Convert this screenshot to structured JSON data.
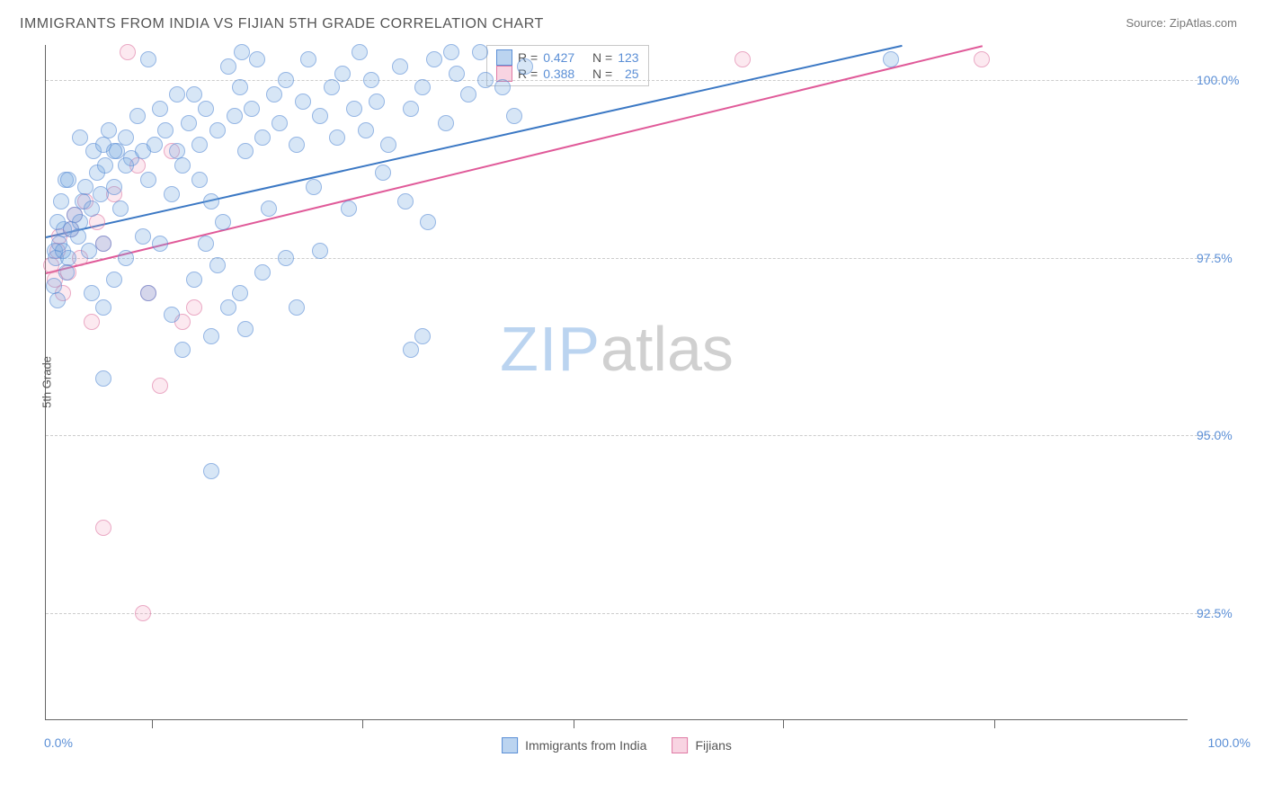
{
  "title": "IMMIGRANTS FROM INDIA VS FIJIAN 5TH GRADE CORRELATION CHART",
  "source_prefix": "Source: ",
  "source_name": "ZipAtlas.com",
  "ylabel": "5th Grade",
  "watermark": {
    "part1": "ZIP",
    "part2": "atlas"
  },
  "chart": {
    "type": "scatter",
    "xlim": [
      0,
      100
    ],
    "ylim": [
      91,
      100.5
    ],
    "xaxis": {
      "min_label": "0.0%",
      "max_label": "100.0%",
      "tick_positions": [
        9.3,
        27.7,
        46.2,
        64.6,
        83.1
      ]
    },
    "yaxis": {
      "ticks": [
        {
          "v": 100.0,
          "label": "100.0%"
        },
        {
          "v": 97.5,
          "label": "97.5%"
        },
        {
          "v": 95.0,
          "label": "95.0%"
        },
        {
          "v": 92.5,
          "label": "92.5%"
        }
      ],
      "label_color": "#5b8fd6",
      "label_fontsize": 14
    },
    "grid_color": "#cccccc",
    "background_color": "#ffffff",
    "marker_size": 18,
    "series": {
      "blue": {
        "name": "Immigrants from India",
        "fill": "rgba(120,170,225,0.45)",
        "stroke": "#5b8fd6",
        "R": "0.427",
        "N": "123",
        "trend": {
          "x1": 0,
          "y1": 97.8,
          "x2": 75,
          "y2": 100.5,
          "color": "#3b78c4",
          "width": 2
        },
        "points": [
          [
            0.8,
            97.6
          ],
          [
            0.9,
            97.5
          ],
          [
            1.2,
            97.7
          ],
          [
            1.5,
            97.6
          ],
          [
            1.6,
            97.9
          ],
          [
            1.0,
            98.0
          ],
          [
            1.8,
            97.3
          ],
          [
            0.7,
            97.1
          ],
          [
            1.0,
            96.9
          ],
          [
            2.0,
            97.5
          ],
          [
            2.2,
            97.9
          ],
          [
            2.5,
            98.1
          ],
          [
            1.3,
            98.3
          ],
          [
            2.8,
            97.8
          ],
          [
            3.0,
            98.0
          ],
          [
            3.2,
            98.3
          ],
          [
            3.5,
            98.5
          ],
          [
            1.7,
            98.6
          ],
          [
            2.0,
            98.6
          ],
          [
            3.8,
            97.6
          ],
          [
            4.0,
            98.2
          ],
          [
            4.2,
            99.0
          ],
          [
            4.5,
            98.7
          ],
          [
            4.8,
            98.4
          ],
          [
            5.0,
            99.1
          ],
          [
            5.2,
            98.8
          ],
          [
            5.5,
            99.3
          ],
          [
            5.0,
            97.7
          ],
          [
            6.0,
            98.5
          ],
          [
            6.2,
            99.0
          ],
          [
            6.5,
            98.2
          ],
          [
            7.0,
            99.2
          ],
          [
            7.5,
            98.9
          ],
          [
            8.0,
            99.5
          ],
          [
            8.5,
            99.0
          ],
          [
            9.0,
            98.6
          ],
          [
            9.5,
            99.1
          ],
          [
            10.0,
            99.6
          ],
          [
            10.5,
            99.3
          ],
          [
            11.0,
            98.4
          ],
          [
            11.5,
            99.0
          ],
          [
            12.0,
            98.8
          ],
          [
            12.5,
            99.4
          ],
          [
            13.0,
            99.8
          ],
          [
            13.5,
            99.1
          ],
          [
            14.0,
            99.6
          ],
          [
            14.5,
            98.3
          ],
          [
            15.0,
            99.3
          ],
          [
            16.0,
            100.2
          ],
          [
            16.5,
            99.5
          ],
          [
            17.0,
            99.9
          ],
          [
            17.2,
            100.4
          ],
          [
            17.5,
            99.0
          ],
          [
            18.0,
            99.6
          ],
          [
            18.5,
            100.3
          ],
          [
            19.0,
            99.2
          ],
          [
            20.0,
            99.8
          ],
          [
            20.5,
            99.4
          ],
          [
            21.0,
            100.0
          ],
          [
            22.0,
            99.1
          ],
          [
            22.5,
            99.7
          ],
          [
            23.0,
            100.3
          ],
          [
            24.0,
            99.5
          ],
          [
            25.0,
            99.9
          ],
          [
            25.5,
            99.2
          ],
          [
            26.0,
            100.1
          ],
          [
            27.0,
            99.6
          ],
          [
            27.5,
            100.4
          ],
          [
            28.0,
            99.3
          ],
          [
            28.5,
            100.0
          ],
          [
            29.0,
            99.7
          ],
          [
            30.0,
            99.1
          ],
          [
            31.0,
            100.2
          ],
          [
            32.0,
            99.6
          ],
          [
            33.0,
            99.9
          ],
          [
            33.5,
            98.0
          ],
          [
            34.0,
            100.3
          ],
          [
            35.0,
            99.4
          ],
          [
            36.0,
            100.1
          ],
          [
            37.0,
            99.8
          ],
          [
            38.0,
            100.4
          ],
          [
            40.0,
            99.9
          ],
          [
            42.0,
            100.2
          ],
          [
            4.0,
            97.0
          ],
          [
            5.0,
            96.8
          ],
          [
            6.0,
            97.2
          ],
          [
            7.0,
            97.5
          ],
          [
            9.0,
            97.0
          ],
          [
            10.0,
            97.7
          ],
          [
            11.0,
            96.7
          ],
          [
            13.0,
            97.2
          ],
          [
            14.0,
            97.7
          ],
          [
            15.0,
            97.4
          ],
          [
            17.0,
            97.0
          ],
          [
            19.0,
            97.3
          ],
          [
            21.0,
            97.5
          ],
          [
            22.0,
            96.8
          ],
          [
            24.0,
            97.6
          ],
          [
            12.0,
            96.2
          ],
          [
            14.5,
            96.4
          ],
          [
            16.0,
            96.8
          ],
          [
            17.5,
            96.5
          ],
          [
            32.0,
            96.2
          ],
          [
            33.0,
            96.4
          ],
          [
            5.0,
            95.8
          ],
          [
            14.5,
            94.5
          ],
          [
            7.0,
            98.8
          ],
          [
            8.5,
            97.8
          ],
          [
            3.0,
            99.2
          ],
          [
            6.0,
            99.0
          ],
          [
            9.0,
            100.3
          ],
          [
            11.5,
            99.8
          ],
          [
            13.5,
            98.6
          ],
          [
            15.5,
            98.0
          ],
          [
            19.5,
            98.2
          ],
          [
            23.5,
            98.5
          ],
          [
            26.5,
            98.2
          ],
          [
            29.5,
            98.7
          ],
          [
            31.5,
            98.3
          ],
          [
            35.5,
            100.4
          ],
          [
            38.5,
            100.0
          ],
          [
            41.0,
            99.5
          ],
          [
            74.0,
            100.3
          ]
        ]
      },
      "pink": {
        "name": "Fijians",
        "fill": "rgba(240,160,190,0.35)",
        "stroke": "#e07ba5",
        "R": "0.388",
        "N": "25",
        "trend": {
          "x1": 0,
          "y1": 97.3,
          "x2": 82,
          "y2": 100.5,
          "color": "#e05a99",
          "width": 2
        },
        "points": [
          [
            0.5,
            97.4
          ],
          [
            0.8,
            97.2
          ],
          [
            1.0,
            97.6
          ],
          [
            1.2,
            97.8
          ],
          [
            1.5,
            97.0
          ],
          [
            2.0,
            97.3
          ],
          [
            2.2,
            97.9
          ],
          [
            2.5,
            98.1
          ],
          [
            3.0,
            97.5
          ],
          [
            3.5,
            98.3
          ],
          [
            4.0,
            96.6
          ],
          [
            4.5,
            98.0
          ],
          [
            5.0,
            97.7
          ],
          [
            6.0,
            98.4
          ],
          [
            7.2,
            100.4
          ],
          [
            8.0,
            98.8
          ],
          [
            9.0,
            97.0
          ],
          [
            10.0,
            95.7
          ],
          [
            11.0,
            99.0
          ],
          [
            12.0,
            96.6
          ],
          [
            13.0,
            96.8
          ],
          [
            5.0,
            93.7
          ],
          [
            8.5,
            92.5
          ],
          [
            61.0,
            100.3
          ],
          [
            82.0,
            100.3
          ]
        ]
      }
    }
  },
  "bottom_legend": {
    "item1": "Immigrants from India",
    "item2": "Fijians"
  },
  "correlation_legend": {
    "r_label": "R =",
    "n_label": "N ="
  }
}
